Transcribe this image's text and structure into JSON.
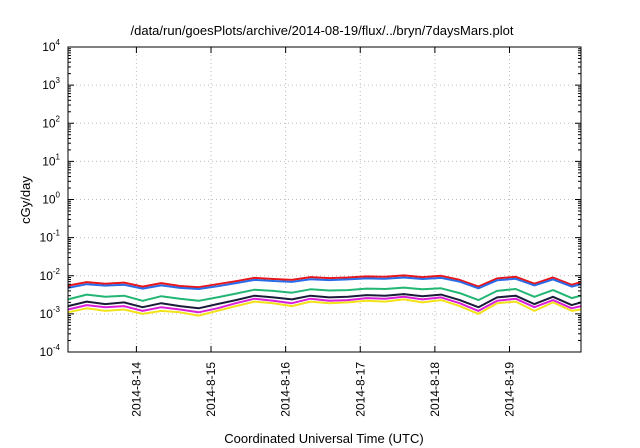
{
  "chart_data": {
    "type": "line",
    "title": "/data/run/goesPlots/archive/2014-08-19/flux/../bryn/7daysMars.plot",
    "xlabel": "Coordinated Universal Time (UTC)",
    "ylabel": "cGy/day",
    "y_scale": "log",
    "ylim": [
      0.0001,
      10000
    ],
    "y_ticks": [
      {
        "base": "10",
        "exp": "-4",
        "value": 0.0001
      },
      {
        "base": "10",
        "exp": "-3",
        "value": 0.001
      },
      {
        "base": "10",
        "exp": "-2",
        "value": 0.01
      },
      {
        "base": "10",
        "exp": "-1",
        "value": 0.1
      },
      {
        "base": "10",
        "exp": "0",
        "value": 1
      },
      {
        "base": "10",
        "exp": "1",
        "value": 10
      },
      {
        "base": "10",
        "exp": "2",
        "value": 100
      },
      {
        "base": "10",
        "exp": "3",
        "value": 1000
      },
      {
        "base": "10",
        "exp": "4",
        "value": 10000
      }
    ],
    "xlim": [
      "2014-08-13T02:00",
      "2014-08-19T23:00"
    ],
    "x_ticks": [
      "2014-8-14",
      "2014-8-15",
      "2014-8-16",
      "2014-8-17",
      "2014-8-18",
      "2014-8-19"
    ],
    "grid": true,
    "x": [
      "2014-08-13T02:00",
      "2014-08-13T08:00",
      "2014-08-13T14:00",
      "2014-08-13T20:00",
      "2014-08-14T02:00",
      "2014-08-14T08:00",
      "2014-08-14T14:00",
      "2014-08-14T20:00",
      "2014-08-15T02:00",
      "2014-08-15T08:00",
      "2014-08-15T14:00",
      "2014-08-15T20:00",
      "2014-08-16T02:00",
      "2014-08-16T08:00",
      "2014-08-16T14:00",
      "2014-08-16T20:00",
      "2014-08-17T02:00",
      "2014-08-17T08:00",
      "2014-08-17T14:00",
      "2014-08-17T20:00",
      "2014-08-18T02:00",
      "2014-08-18T08:00",
      "2014-08-18T14:00",
      "2014-08-18T20:00",
      "2014-08-19T02:00",
      "2014-08-19T08:00",
      "2014-08-19T14:00",
      "2014-08-19T20:00",
      "2014-08-19T23:00"
    ],
    "series": [
      {
        "color": "#e8161b",
        "values": [
          0.0055,
          0.0068,
          0.0062,
          0.0066,
          0.0052,
          0.0064,
          0.0054,
          0.005,
          0.006,
          0.0072,
          0.0088,
          0.0082,
          0.0078,
          0.0092,
          0.0087,
          0.009,
          0.0096,
          0.0094,
          0.0102,
          0.0092,
          0.01,
          0.0078,
          0.0052,
          0.0085,
          0.0094,
          0.0062,
          0.009,
          0.0058,
          0.0068
        ]
      },
      {
        "color": "#2a6ce8",
        "values": [
          0.0048,
          0.006,
          0.0055,
          0.0058,
          0.0046,
          0.0056,
          0.0048,
          0.0045,
          0.0053,
          0.0064,
          0.0078,
          0.0073,
          0.0069,
          0.0081,
          0.0077,
          0.008,
          0.0085,
          0.0083,
          0.009,
          0.0082,
          0.0088,
          0.007,
          0.0047,
          0.0076,
          0.0083,
          0.0056,
          0.008,
          0.0052,
          0.006
        ]
      },
      {
        "color": "#22b673",
        "values": [
          0.0024,
          0.0032,
          0.0028,
          0.003,
          0.0022,
          0.0029,
          0.0025,
          0.0022,
          0.0027,
          0.0034,
          0.0043,
          0.004,
          0.0036,
          0.0044,
          0.0041,
          0.0042,
          0.0046,
          0.0045,
          0.0049,
          0.0044,
          0.0047,
          0.0035,
          0.0023,
          0.004,
          0.0045,
          0.0028,
          0.0042,
          0.0026,
          0.003
        ]
      },
      {
        "color": "#1a1a3a",
        "values": [
          0.0016,
          0.0021,
          0.0018,
          0.002,
          0.0015,
          0.0019,
          0.0016,
          0.0014,
          0.0018,
          0.0023,
          0.003,
          0.0027,
          0.0024,
          0.003,
          0.0027,
          0.0028,
          0.0031,
          0.003,
          0.0033,
          0.0029,
          0.0032,
          0.0023,
          0.0015,
          0.0027,
          0.003,
          0.0018,
          0.0028,
          0.0017,
          0.002
        ]
      },
      {
        "color": "#d91fd9",
        "values": [
          0.0013,
          0.0017,
          0.0015,
          0.0016,
          0.0012,
          0.0015,
          0.0013,
          0.0011,
          0.0014,
          0.0019,
          0.0025,
          0.0022,
          0.0019,
          0.0025,
          0.0022,
          0.0023,
          0.0026,
          0.0025,
          0.0028,
          0.0024,
          0.0027,
          0.0019,
          0.0012,
          0.0022,
          0.0025,
          0.0015,
          0.0023,
          0.0014,
          0.0016
        ]
      },
      {
        "color": "#f2e21a",
        "values": [
          0.0011,
          0.0014,
          0.0012,
          0.0013,
          0.001,
          0.0012,
          0.0011,
          0.0009,
          0.0012,
          0.0016,
          0.0021,
          0.0019,
          0.0016,
          0.0021,
          0.0019,
          0.002,
          0.0022,
          0.0021,
          0.0024,
          0.002,
          0.0023,
          0.0016,
          0.001,
          0.0019,
          0.0021,
          0.0012,
          0.002,
          0.0012,
          0.0013
        ]
      }
    ]
  }
}
